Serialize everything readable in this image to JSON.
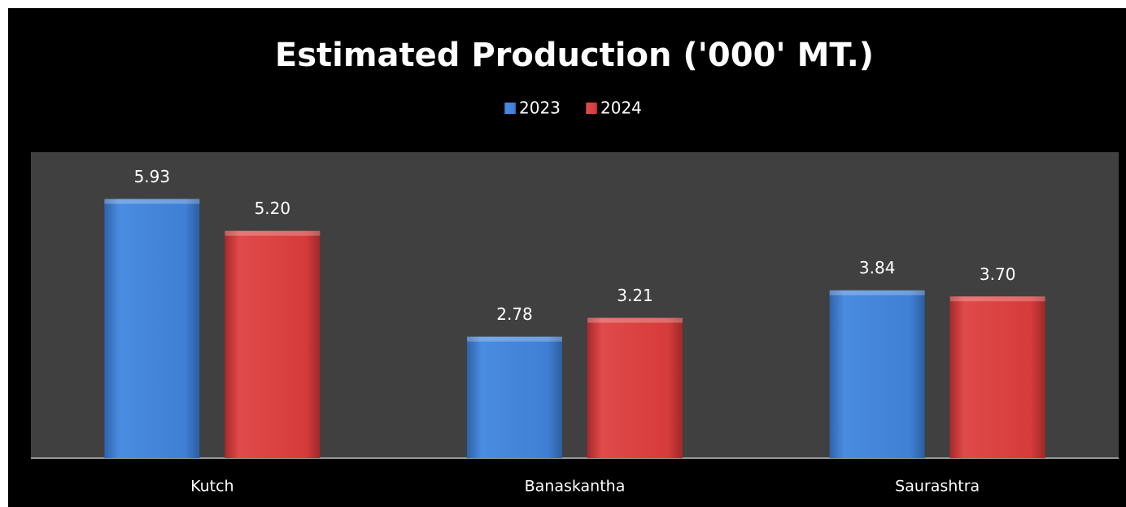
{
  "chart_data": {
    "type": "bar",
    "title": "Estimated Production ('000' MT.)",
    "categories": [
      "Kutch",
      "Banaskantha",
      "Saurashtra"
    ],
    "series": [
      {
        "name": "2023",
        "color": "#3f7fd4",
        "values": [
          5.93,
          2.78,
          3.84
        ],
        "value_labels": [
          "5.93",
          "2.78",
          "3.84"
        ]
      },
      {
        "name": "2024",
        "color": "#d63b3b",
        "values": [
          5.2,
          3.21,
          3.7
        ],
        "value_labels": [
          "5.20",
          "3.21",
          "3.70"
        ]
      }
    ],
    "ylim": [
      0,
      7
    ],
    "legend": "top"
  }
}
